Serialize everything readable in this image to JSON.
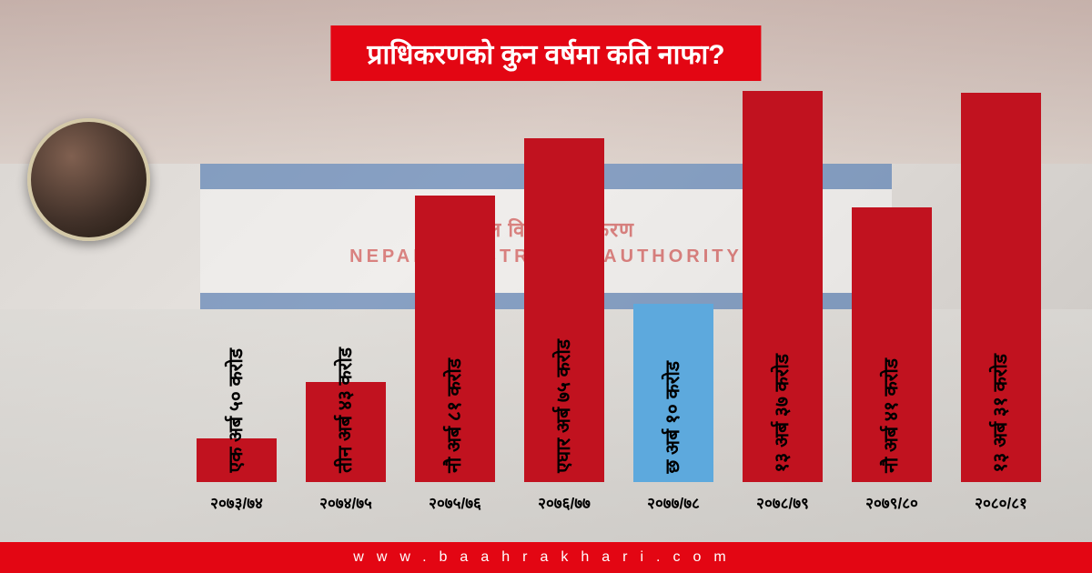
{
  "title": "प्राधिकरणको कुन वर्षमा कति नाफा?",
  "title_bg": "#e30613",
  "title_color": "#ffffff",
  "footer_text": "www.baahrakhari.com",
  "footer_bg": "#e30613",
  "footer_color": "#ffffff",
  "bg_sign_line1": "नेपाल विद्युत प्राधिकरण",
  "bg_sign_line2": "NEPAL ELECTRICITY AUTHORITY",
  "chart": {
    "type": "bar",
    "bar_width_pct": 74,
    "value_max": 14,
    "categories": [
      "२०७३/७४",
      "२०७४/७५",
      "२०७५/७६",
      "२०७६/७७",
      "२०७७/७८",
      "२०७८/७९",
      "२०७९/८०",
      "२०८०/८१"
    ],
    "values": [
      1.5,
      3.43,
      9.81,
      11.75,
      6.1,
      13.37,
      9.41,
      13.31
    ],
    "bar_labels": [
      "एक अर्ब ५० करोड",
      "तीन अर्ब ४३ करोड",
      "नौ अर्ब ८१ करोड",
      "एघार अर्ब ७५ करोड",
      "छ अर्ब १० करोड",
      "१३ अर्ब ३७ करोड",
      "नौ अर्ब ४१ करोड",
      "१३ अर्ब ३१ करोड"
    ],
    "bar_colors": [
      "#c1121f",
      "#c1121f",
      "#c1121f",
      "#c1121f",
      "#5da9dd",
      "#c1121f",
      "#c1121f",
      "#c1121f"
    ],
    "label_fontsize": 21,
    "xlabel_fontsize": 17,
    "label_color": "#000000"
  }
}
